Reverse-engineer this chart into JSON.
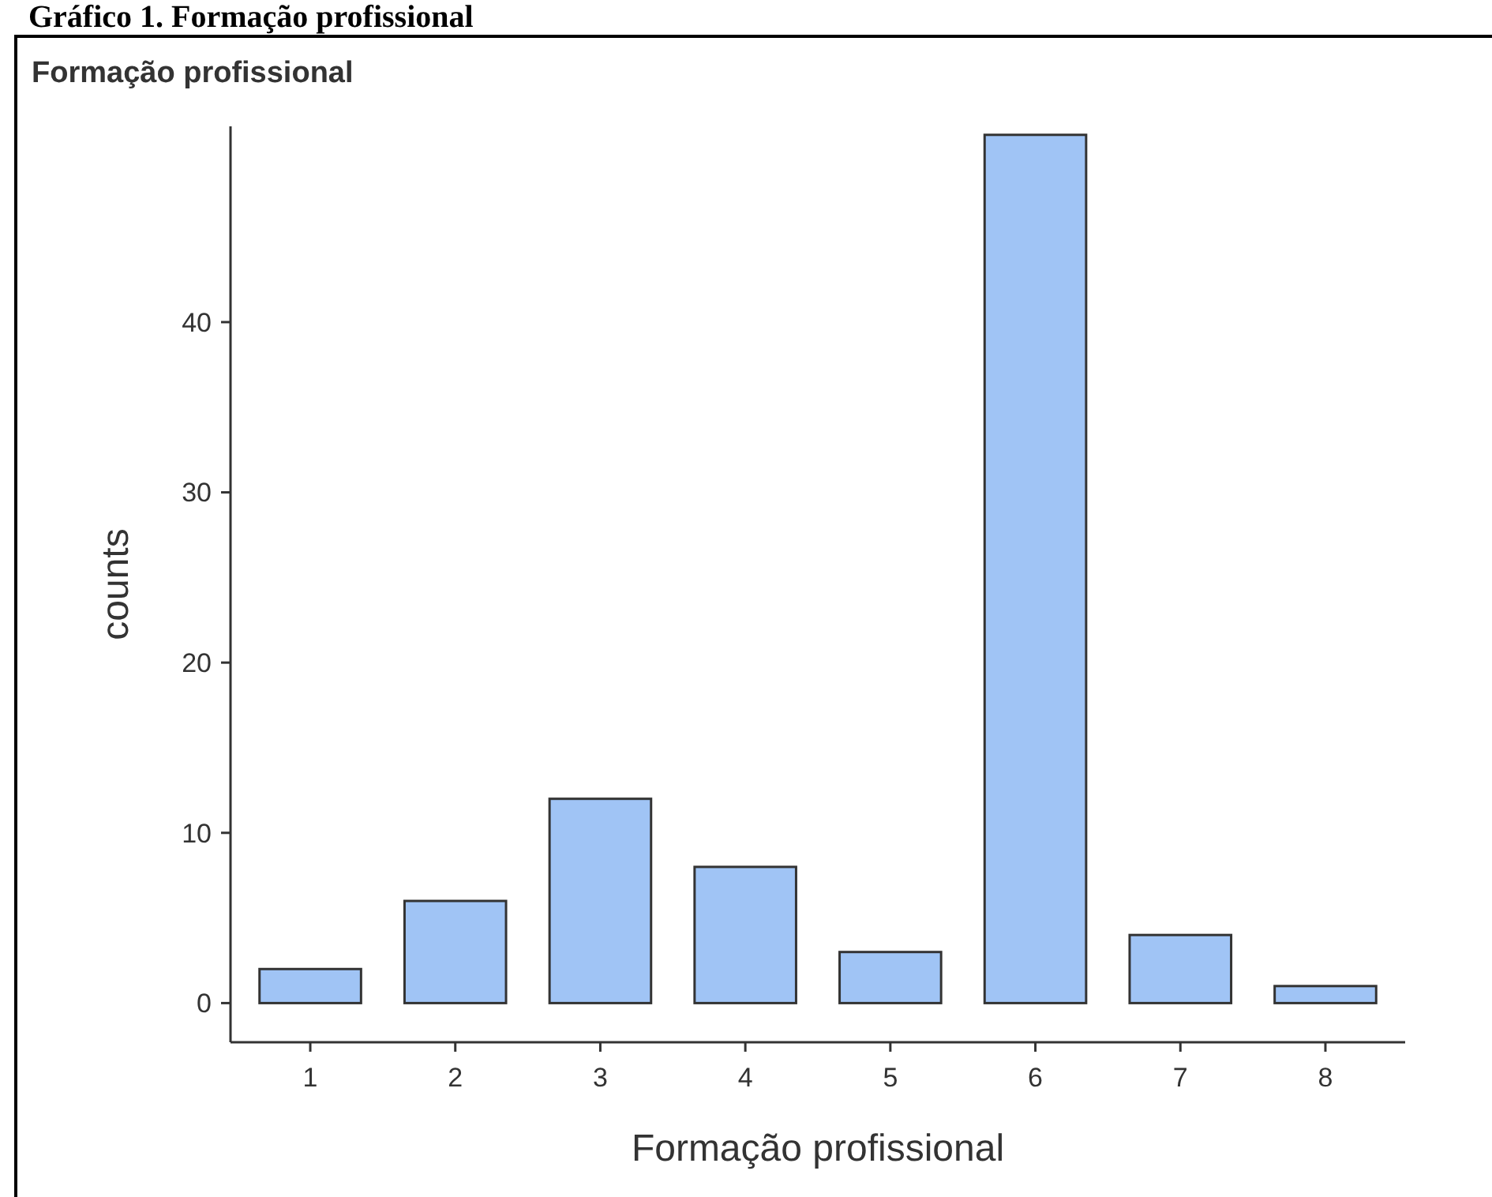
{
  "chart_data": {
    "type": "bar",
    "title": "Gráfico 1. Formação profissional",
    "subtitle": "Formação profissional",
    "xlabel": "Formação profissional",
    "ylabel": "counts",
    "categories": [
      "1",
      "2",
      "3",
      "4",
      "5",
      "6",
      "7",
      "8"
    ],
    "values": [
      2,
      6,
      12,
      8,
      3,
      51,
      4,
      1
    ],
    "color": "#a0c4f5",
    "ylim": [
      -2.3,
      51.5
    ],
    "yticks": [
      0,
      10,
      20,
      30,
      40
    ],
    "grid": false
  }
}
